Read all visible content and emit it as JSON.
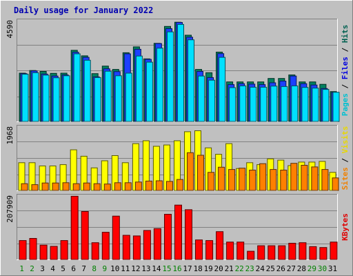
{
  "chart_data": {
    "type": "bar",
    "title": "Daily usage for January 2022",
    "categories": [
      "1",
      "2",
      "3",
      "4",
      "5",
      "6",
      "7",
      "8",
      "9",
      "10",
      "11",
      "12",
      "13",
      "14",
      "15",
      "16",
      "17",
      "18",
      "19",
      "20",
      "21",
      "22",
      "23",
      "24",
      "25",
      "26",
      "27",
      "28",
      "29",
      "30",
      "31"
    ],
    "weekend_days": [
      "1",
      "2",
      "8",
      "9",
      "15",
      "16",
      "22",
      "23",
      "29",
      "30"
    ],
    "panels": [
      {
        "id": "hits-files-pages",
        "axis_max_label": "4590",
        "ylim": [
          0,
          4590
        ],
        "side_labels": [
          {
            "text": "Pages",
            "color": "#00c0d0"
          },
          {
            "text": "Files",
            "color": "#0000e0"
          },
          {
            "text": "Hits",
            "color": "#006050"
          }
        ],
        "series": [
          {
            "name": "Hits",
            "color": "#008060",
            "values": [
              2200,
              2320,
              2280,
              2190,
              2200,
              3240,
              2990,
              2180,
              2520,
              2370,
              3130,
              3400,
              2850,
              3560,
              4330,
              4520,
              3930,
              2370,
              2220,
              3160,
              1800,
              1800,
              1800,
              1800,
              1960,
              1960,
              2120,
              1800,
              1800,
              1690,
              1360
            ]
          },
          {
            "name": "Files",
            "color": "#1c40ff",
            "values": [
              2180,
              2300,
              2160,
              2070,
              2120,
              3150,
              2920,
              2030,
              2400,
              2270,
              3080,
              3290,
              2830,
              3550,
              4230,
              4510,
              3840,
              2280,
              2000,
              3090,
              1680,
              1720,
              1700,
              1680,
              1760,
              1840,
              2070,
              1720,
              1660,
              1500,
              1320
            ]
          },
          {
            "name": "Pages",
            "color": "#00e0ff",
            "values": [
              2150,
              2220,
              2110,
              1990,
              2080,
              3080,
              2790,
              2000,
              2290,
              2080,
              2200,
              2980,
              2700,
              3340,
              4080,
              4420,
              3720,
              2070,
              1880,
              2920,
              1540,
              1620,
              1560,
              1560,
              1610,
              1590,
              1620,
              1550,
              1520,
              1460,
              1330
            ]
          }
        ]
      },
      {
        "id": "visits-sites",
        "axis_max_label": "1968",
        "ylim": [
          0,
          1968
        ],
        "side_labels": [
          {
            "text": "Sites",
            "color": "#f08000"
          },
          {
            "text": "Visits",
            "color": "#e8d800"
          }
        ],
        "series": [
          {
            "name": "Visits",
            "color": "#ffff00",
            "values": [
              860,
              860,
              760,
              760,
              800,
              1260,
              1060,
              700,
              920,
              1080,
              860,
              1450,
              1540,
              1370,
              1410,
              1540,
              1820,
              1850,
              1320,
              1120,
              1450,
              680,
              860,
              800,
              980,
              940,
              770,
              880,
              880,
              900,
              560
            ]
          },
          {
            "name": "Sites",
            "color": "#ff8000",
            "values": [
              210,
              180,
              230,
              230,
              240,
              210,
              230,
              210,
              200,
              240,
              240,
              260,
              290,
              300,
              280,
              340,
              1170,
              1090,
              560,
              720,
              650,
              690,
              630,
              830,
              650,
              630,
              840,
              780,
              730,
              650,
              390
            ]
          }
        ]
      },
      {
        "id": "kbytes",
        "axis_max_label": "207909",
        "ylim": [
          0,
          207909
        ],
        "side_labels": [
          {
            "text": "KBytes",
            "color": "#e00000"
          }
        ],
        "series": [
          {
            "name": "KBytes",
            "color": "#ff0000",
            "values": [
              62000,
              69000,
              47000,
              43000,
              62000,
              207000,
              157000,
              55000,
              89000,
              142000,
              79000,
              77000,
              95000,
              101000,
              148000,
              178000,
              163000,
              64000,
              62000,
              91000,
              57000,
              57000,
              27000,
              45000,
              45000,
              45000,
              53000,
              55000,
              42000,
              39000,
              57000
            ]
          }
        ]
      }
    ],
    "grid": true,
    "legend_placement": "right (vertical)"
  },
  "colors": {
    "background": "#c0c0c0",
    "plot_background": "#c0c0c0",
    "title": "#0000b0",
    "weekend_label": "#008000",
    "weekday_label": "#000000"
  }
}
